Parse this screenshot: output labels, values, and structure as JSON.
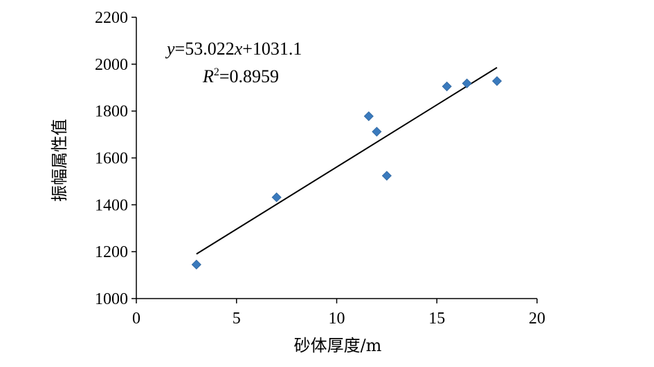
{
  "chart_data": {
    "type": "scatter",
    "xlabel": "砂体厚度/m",
    "ylabel": "振幅属性值",
    "xlim": [
      0,
      20
    ],
    "ylim": [
      1000,
      2200
    ],
    "xticks": [
      0,
      5,
      10,
      15,
      20
    ],
    "yticks": [
      1000,
      1200,
      1400,
      1600,
      1800,
      2000,
      2200
    ],
    "grid": false,
    "marker_color": "#3A7ABD",
    "series": [
      {
        "x": [
          3.0,
          7.0,
          11.6,
          12.0,
          12.5,
          15.5,
          16.5,
          18.0
        ],
        "y": [
          1145,
          1432,
          1778,
          1712,
          1524,
          1905,
          1918,
          1928
        ]
      }
    ],
    "trendline": {
      "slope": 53.022,
      "intercept": 1031.1,
      "x_range": [
        3.0,
        18.0
      ]
    },
    "annotations": {
      "equation": {
        "y": "y",
        "rhs1": "=53.022",
        "x": "x",
        "rhs2": "+1031.1"
      },
      "r2": {
        "r": "R",
        "sup": "2",
        "value": "=0.8959"
      }
    }
  }
}
